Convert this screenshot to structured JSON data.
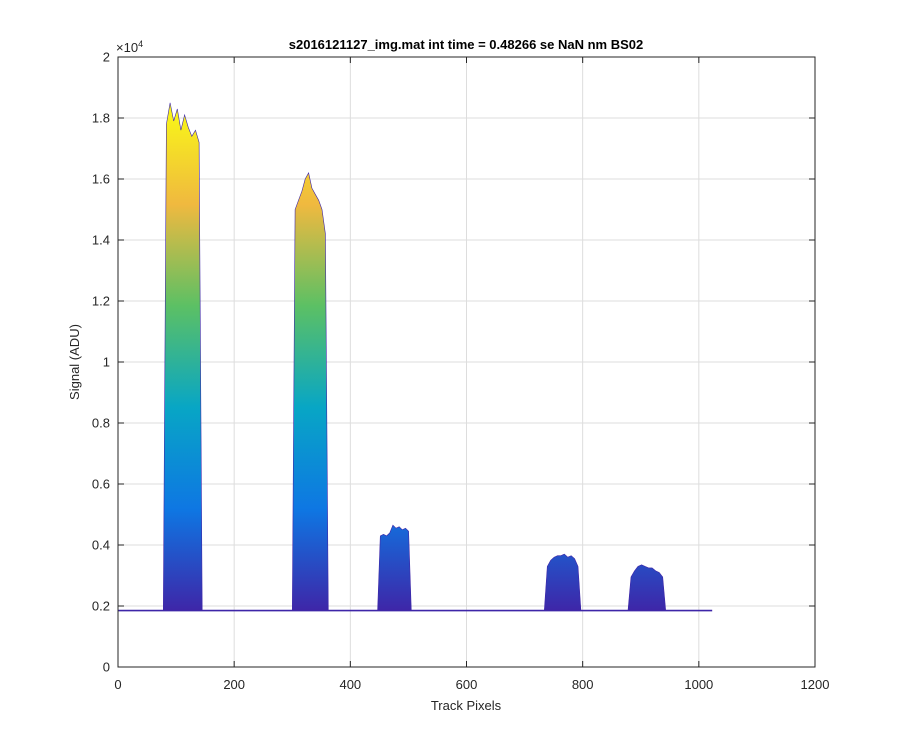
{
  "chart_data": {
    "type": "area",
    "title": "s2016121127_img.mat int time = 0.48266 se  NaN nm BS02",
    "xlabel": "Track Pixels",
    "ylabel": "Signal (ADU)",
    "xlim": [
      0,
      1200
    ],
    "ylim": [
      0,
      20000
    ],
    "xticks": [
      0,
      200,
      400,
      600,
      800,
      1000,
      1200
    ],
    "xtick_labels": [
      "0",
      "200",
      "400",
      "600",
      "800",
      "1000",
      "1200"
    ],
    "yticks": [
      0,
      2000,
      4000,
      6000,
      8000,
      10000,
      12000,
      14000,
      16000,
      18000,
      20000
    ],
    "ytick_labels": [
      "0",
      "0.2",
      "0.4",
      "0.6",
      "0.8",
      "1",
      "1.2",
      "1.4",
      "1.6",
      "1.8",
      "2"
    ],
    "y_exponent_label": "×10",
    "y_exponent_power": "4",
    "grid": true,
    "colormap": [
      "#3e26a8",
      "#0e77e3",
      "#08a6c5",
      "#5cc064",
      "#f0b93f",
      "#f9fb15"
    ],
    "baseline": 1850,
    "x_end": 1023,
    "peaks": [
      {
        "x_start": 78,
        "x_end": 145,
        "max": 18500,
        "profile": [
          17800,
          18500,
          17900,
          18300,
          17600,
          18100,
          17700,
          17400,
          17600,
          17200
        ]
      },
      {
        "x_start": 300,
        "x_end": 362,
        "max": 16200,
        "profile": [
          15000,
          15300,
          15600,
          16000,
          16200,
          15700,
          15500,
          15300,
          15000,
          14200
        ]
      },
      {
        "x_start": 447,
        "x_end": 505,
        "max": 4700,
        "profile": [
          4300,
          4350,
          4300,
          4400,
          4650,
          4550,
          4600,
          4500,
          4550,
          4450
        ]
      },
      {
        "x_start": 734,
        "x_end": 797,
        "max": 3700,
        "profile": [
          3300,
          3500,
          3600,
          3650,
          3650,
          3700,
          3600,
          3650,
          3550,
          3300
        ]
      },
      {
        "x_start": 878,
        "x_end": 943,
        "max": 3350,
        "profile": [
          2950,
          3150,
          3300,
          3350,
          3300,
          3250,
          3250,
          3150,
          3100,
          2950
        ]
      }
    ]
  },
  "colors": {
    "axis": "#262626",
    "grid": "#dddddd",
    "baseline_line": "#3e26a8"
  }
}
